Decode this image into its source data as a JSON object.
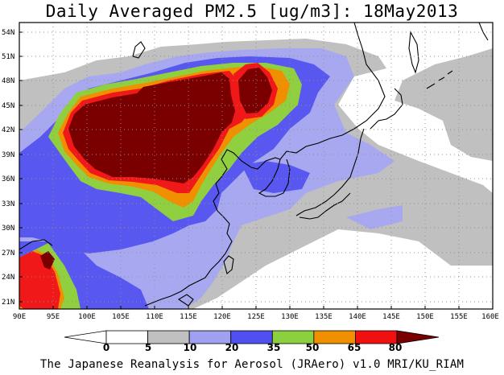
{
  "title": "Daily Averaged PM2.5 [ug/m3]: 18May2013",
  "credit": "The Japanese Reanalysis for Aerosol (JRAero) v1.0 MRI/KU_RIAM",
  "chart_data": {
    "type": "map",
    "quantity": "PM2.5",
    "units": "ug/m3",
    "date": "18May2013",
    "lon_range": [
      90,
      160
    ],
    "lat_range": [
      20,
      55
    ],
    "x_ticks": [
      "90E",
      "95E",
      "100E",
      "105E",
      "110E",
      "115E",
      "120E",
      "125E",
      "130E",
      "135E",
      "140E",
      "145E",
      "150E",
      "155E",
      "160E"
    ],
    "y_ticks": [
      "54N",
      "51N",
      "48N",
      "45N",
      "42N",
      "39N",
      "36N",
      "33N",
      "30N",
      "27N",
      "24N",
      "21N"
    ],
    "colorbar": {
      "levels": [
        "0",
        "5",
        "10",
        "20",
        "35",
        "50",
        "65",
        "80"
      ],
      "colors": [
        "#ffffff",
        "#ffffff",
        "#c0c0c0",
        "#a0a0f0",
        "#5050f0",
        "#8cd040",
        "#f09000",
        "#f01010",
        "#7a0000"
      ]
    }
  }
}
